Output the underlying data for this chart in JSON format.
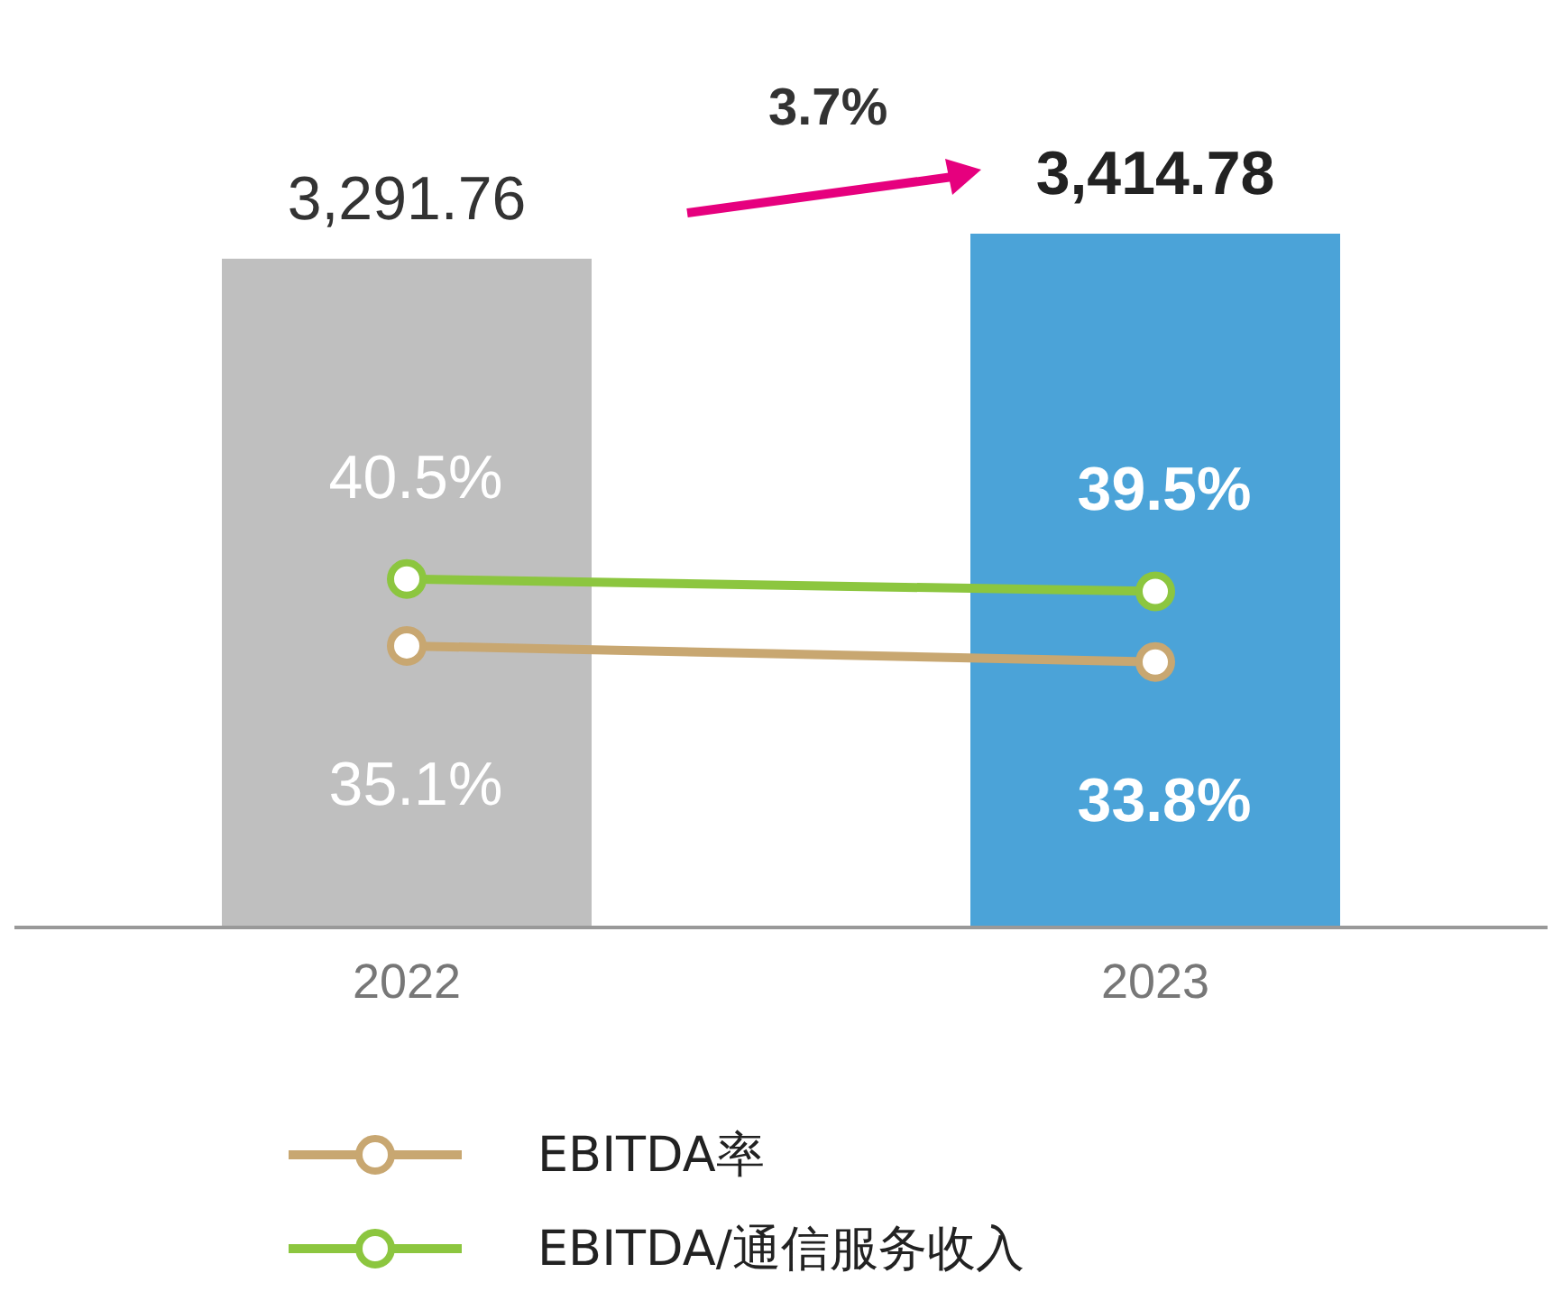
{
  "chart_data": {
    "type": "bar",
    "categories": [
      "2022",
      "2023"
    ],
    "series": [
      {
        "colors": [
          "#bfbfbf",
          "#4ba3d8"
        ],
        "values": [
          3291.76,
          3414.78
        ],
        "value_labels": [
          "3,291.76",
          "3,414.78"
        ]
      },
      {
        "type": "line",
        "name": "EBITDA率",
        "color": "#c8a771",
        "axis": "y2",
        "values": [
          35.1,
          33.8
        ],
        "value_labels": [
          "35.1%",
          "33.8%"
        ]
      },
      {
        "type": "line",
        "name": "EBITDA/通信服务收入",
        "color": "#8cc63f",
        "axis": "y2",
        "values": [
          40.5,
          39.5
        ],
        "value_labels": [
          "40.5%",
          "39.5%"
        ]
      }
    ],
    "annotations": [
      "3.7%"
    ],
    "marker": "circle",
    "legend": "bottom",
    "grid": false
  }
}
